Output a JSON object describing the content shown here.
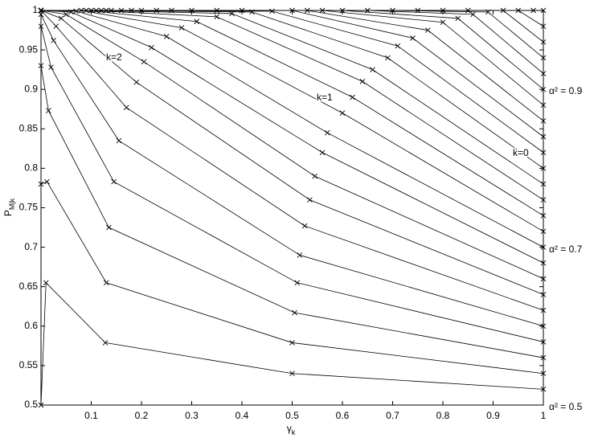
{
  "chart_data": {
    "type": "line",
    "marker": "x",
    "xlabel": {
      "main": "γ",
      "sub": "k"
    },
    "ylabel": {
      "main": "P",
      "sub": "M|k"
    },
    "xlim": [
      0,
      1
    ],
    "ylim": [
      0.5,
      1
    ],
    "xticks": [
      0.1,
      0.2,
      0.3,
      0.4,
      0.5,
      0.6,
      0.7,
      0.8,
      0.9,
      1
    ],
    "yticks": [
      0.5,
      0.55,
      0.6,
      0.65,
      0.7,
      0.75,
      0.8,
      0.85,
      0.9,
      0.95,
      1
    ],
    "annotations": [
      "k=2",
      "k=1",
      "k=0",
      "α² = 0.9",
      "α² = 0.7",
      "α² = 0.5"
    ],
    "series": [
      {
        "color": "#000000",
        "x": [
          1,
          0.5,
          0.128,
          0.01,
          0
        ],
        "values": [
          0.52,
          0.54,
          0.579,
          0.655,
          0.5
        ]
      },
      {
        "color": "#000000",
        "x": [
          1,
          0.5,
          0.13,
          0.012,
          0
        ],
        "values": [
          0.54,
          0.579,
          0.655,
          0.783,
          0.78
        ]
      },
      {
        "color": "#000000",
        "x": [
          1,
          0.505,
          0.135,
          0.015,
          0
        ],
        "values": [
          0.56,
          0.617,
          0.725,
          0.873,
          0.93
        ]
      },
      {
        "color": "#000000",
        "x": [
          1,
          0.51,
          0.145,
          0.02,
          0
        ],
        "values": [
          0.58,
          0.655,
          0.783,
          0.928,
          0.98
        ]
      },
      {
        "color": "#000000",
        "x": [
          1,
          0.515,
          0.155,
          0.025,
          0
        ],
        "values": [
          0.6,
          0.69,
          0.835,
          0.962,
          0.995
        ]
      },
      {
        "color": "#000000",
        "x": [
          1,
          0.525,
          0.17,
          0.03,
          0
        ],
        "values": [
          0.62,
          0.727,
          0.877,
          0.98,
          1
        ]
      },
      {
        "color": "#000000",
        "x": [
          1,
          0.535,
          0.19,
          0.04,
          0
        ],
        "values": [
          0.64,
          0.76,
          0.909,
          0.99,
          1
        ]
      },
      {
        "color": "#000000",
        "x": [
          1,
          0.545,
          0.205,
          0.05,
          0
        ],
        "values": [
          0.66,
          0.79,
          0.935,
          0.995,
          1
        ]
      },
      {
        "color": "#000000",
        "x": [
          1,
          0.56,
          0.22,
          0.06,
          0
        ],
        "values": [
          0.68,
          0.82,
          0.953,
          0.998,
          1
        ]
      },
      {
        "color": "#000000",
        "x": [
          1,
          0.57,
          0.25,
          0.07,
          0
        ],
        "values": [
          0.7,
          0.845,
          0.967,
          0.999,
          1
        ]
      },
      {
        "color": "#000000",
        "x": [
          1,
          0.6,
          0.28,
          0.08,
          0
        ],
        "values": [
          0.72,
          0.87,
          0.978,
          1,
          1
        ]
      },
      {
        "color": "#000000",
        "x": [
          1,
          0.62,
          0.31,
          0.09,
          0
        ],
        "values": [
          0.74,
          0.89,
          0.986,
          1,
          1
        ]
      },
      {
        "color": "#000000",
        "x": [
          1,
          0.64,
          0.35,
          0.1,
          0
        ],
        "values": [
          0.76,
          0.91,
          0.992,
          1,
          1
        ]
      },
      {
        "color": "#000000",
        "x": [
          1,
          0.66,
          0.38,
          0.11,
          0
        ],
        "values": [
          0.78,
          0.925,
          0.996,
          1,
          1
        ]
      },
      {
        "color": "#000000",
        "x": [
          1,
          0.69,
          0.42,
          0.12,
          0
        ],
        "values": [
          0.8,
          0.94,
          0.998,
          1,
          1
        ]
      },
      {
        "color": "#000000",
        "x": [
          1,
          0.71,
          0.46,
          0.13,
          0
        ],
        "values": [
          0.82,
          0.955,
          0.999,
          1,
          1
        ]
      },
      {
        "color": "#000000",
        "x": [
          1,
          0.74,
          0.5,
          0.14,
          0
        ],
        "values": [
          0.84,
          0.965,
          1,
          1,
          1
        ]
      },
      {
        "color": "#000000",
        "x": [
          1,
          0.77,
          0.53,
          0.16,
          0
        ],
        "values": [
          0.86,
          0.975,
          1,
          1,
          1
        ]
      },
      {
        "color": "#000000",
        "x": [
          1,
          0.8,
          0.56,
          0.18,
          0
        ],
        "values": [
          0.88,
          0.985,
          1,
          1,
          1
        ]
      },
      {
        "color": "#000000",
        "x": [
          1,
          0.83,
          0.6,
          0.2,
          0
        ],
        "values": [
          0.9,
          0.99,
          1,
          1,
          1
        ]
      },
      {
        "color": "#000000",
        "x": [
          1,
          0.86,
          0.65,
          0.23,
          0
        ],
        "values": [
          0.92,
          0.995,
          1,
          1,
          1
        ]
      },
      {
        "color": "#000000",
        "x": [
          1,
          0.89,
          0.7,
          0.26,
          0
        ],
        "values": [
          0.94,
          0.998,
          1,
          1,
          1
        ]
      },
      {
        "color": "#000000",
        "x": [
          1,
          0.92,
          0.75,
          0.3,
          0
        ],
        "values": [
          0.96,
          1,
          1,
          1,
          1
        ]
      },
      {
        "color": "#000000",
        "x": [
          1,
          0.95,
          0.8,
          0.35,
          0
        ],
        "values": [
          0.98,
          1,
          1,
          1,
          1
        ]
      },
      {
        "color": "#000000",
        "x": [
          1,
          0.98,
          0.85,
          0.4,
          0
        ],
        "values": [
          1,
          1,
          1,
          1,
          1
        ]
      }
    ]
  }
}
